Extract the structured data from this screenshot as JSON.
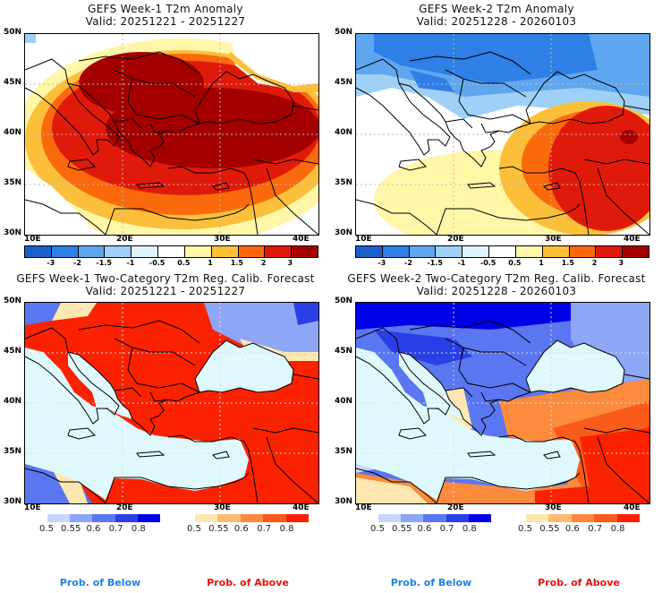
{
  "panels": [
    {
      "title": "GEFS Week-1 T2m Anomaly",
      "valid": "Valid: 20251221 - 20251227"
    },
    {
      "title": "GEFS Week-2 T2m Anomaly",
      "valid": "Valid: 20251228 - 20260103"
    },
    {
      "title": "GEFS Week-1 Two-Category T2m Reg. Calib. Forecast",
      "valid": "Valid: 20251221 - 20251227"
    },
    {
      "title": "GEFS Week-2 Two-Category T2m Reg. Calib. Forecast",
      "valid": "Valid: 20251228 - 20260103"
    }
  ],
  "axes": {
    "lat_labels": [
      "50N",
      "45N",
      "40N",
      "35N",
      "30N"
    ],
    "lon_labels": [
      "10E",
      "20E",
      "30E",
      "40E"
    ]
  },
  "anomaly_colorbar": {
    "colors": [
      "#1a5fcc",
      "#2e7fe6",
      "#5ea7f0",
      "#9fd0f7",
      "#dff5fd",
      "#ffffff",
      "#fff6a8",
      "#fcbf3a",
      "#fa6a0c",
      "#e01a0a",
      "#a50000"
    ],
    "ticks": [
      "-3",
      "-2",
      "-1.5",
      "-1",
      "-0.5",
      "0.5",
      "1",
      "1.5",
      "2",
      "3"
    ]
  },
  "below_colorbar": {
    "colors": [
      "#c6d6fb",
      "#8ea6f6",
      "#5a76f0",
      "#2b3fe6",
      "#0000e6"
    ],
    "ticks": [
      "0.5",
      "0.55",
      "0.6",
      "0.7",
      "0.8"
    ]
  },
  "above_colorbar": {
    "colors": [
      "#fde7b0",
      "#fdbb6f",
      "#fb8a3d",
      "#fa5a1a",
      "#fa2200"
    ],
    "ticks": [
      "0.5",
      "0.55",
      "0.6",
      "0.7",
      "0.8"
    ]
  },
  "legend": {
    "below_label": "Prob. of Below",
    "above_label": "Prob. of Above",
    "below_color": "#1f7fe8",
    "above_color": "#e8110a"
  }
}
